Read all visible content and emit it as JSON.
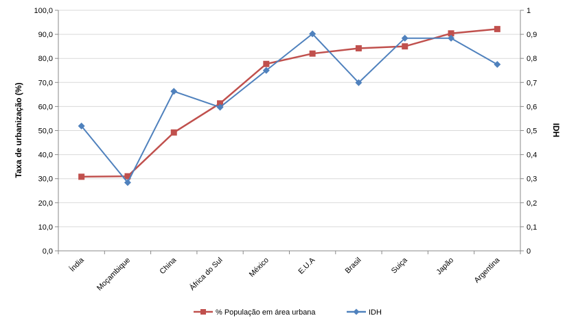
{
  "chart_data": {
    "type": "line",
    "categories": [
      "Índia",
      "Moçambique",
      "China",
      "África do Sul",
      "México",
      "E.U.A",
      "Brasil",
      "Suiça",
      "Japão",
      "Argentina"
    ],
    "series": [
      {
        "name": "% População em área urbana",
        "axis": "left",
        "color": "#c0504d",
        "marker": "square",
        "values": [
          30.8,
          31.0,
          49.2,
          61.3,
          77.7,
          82.0,
          84.2,
          85.0,
          90.4,
          92.2
        ]
      },
      {
        "name": "IDH",
        "axis": "right",
        "color": "#4f81bd",
        "marker": "diamond",
        "values": [
          0.519,
          0.284,
          0.663,
          0.597,
          0.75,
          0.902,
          0.699,
          0.884,
          0.884,
          0.775
        ]
      }
    ],
    "ylabel": "Taxa de urbanização (%)",
    "y2label": "IDH",
    "ylim": [
      0,
      100
    ],
    "y2lim": [
      0,
      1
    ],
    "yticks": [
      "0,0",
      "10,0",
      "20,0",
      "30,0",
      "40,0",
      "50,0",
      "60,0",
      "70,0",
      "80,0",
      "90,0",
      "100,0"
    ],
    "y2ticks": [
      "0",
      "0,1",
      "0,2",
      "0,3",
      "0,4",
      "0,5",
      "0,6",
      "0,7",
      "0,8",
      "0,9",
      "1"
    ],
    "grid": true,
    "legend": "bottom"
  }
}
